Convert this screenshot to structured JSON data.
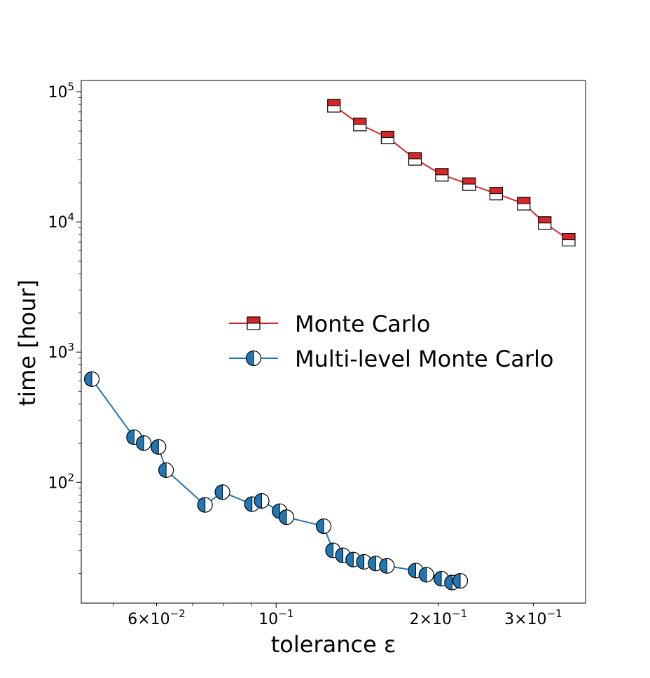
{
  "colors": {
    "mc": "#d62728",
    "mlmc": "#1f77b4",
    "frame": "#000000"
  },
  "chart_data": {
    "type": "line",
    "xlabel": "tolerance ε",
    "ylabel": "time [hour]",
    "xscale": "log",
    "yscale": "log",
    "xlim": [
      0.0435,
      0.375
    ],
    "ylim": [
      11.8,
      122000
    ],
    "grid": false,
    "legend_position": "center-right",
    "x_ticks": [
      {
        "value": 0.06,
        "base": "6",
        "sup": "−2"
      },
      {
        "value": 0.1,
        "base": "10",
        "sup": "−1"
      },
      {
        "value": 0.2,
        "base": "2",
        "sup": "−1"
      },
      {
        "value": 0.3,
        "base": "3",
        "sup": "−1"
      }
    ],
    "y_ticks": [
      {
        "value": 100,
        "sup": "2"
      },
      {
        "value": 1000,
        "sup": "3"
      },
      {
        "value": 10000,
        "sup": "4"
      },
      {
        "value": 100000,
        "sup": "5"
      }
    ],
    "series": [
      {
        "name": "Monte Carlo",
        "color": "#d62728",
        "marker": "square-half-top",
        "x": [
          0.128,
          0.143,
          0.161,
          0.181,
          0.203,
          0.228,
          0.256,
          0.288,
          0.315,
          0.349
        ],
        "y": [
          78000,
          56000,
          44500,
          30500,
          23000,
          19500,
          16500,
          13800,
          9800,
          7300
        ]
      },
      {
        "name": "Multi-level Monte Carlo",
        "color": "#1f77b4",
        "marker": "circle-half-left",
        "x": [
          0.0455,
          0.0545,
          0.0568,
          0.0605,
          0.0625,
          0.0738,
          0.0795,
          0.0902,
          0.094,
          0.1015,
          0.1045,
          0.1225,
          0.1275,
          0.133,
          0.139,
          0.1455,
          0.153,
          0.1605,
          0.1815,
          0.19,
          0.2025,
          0.212,
          0.2195
        ],
        "y": [
          620,
          222,
          200,
          187,
          124,
          67,
          84,
          68,
          72,
          60,
          54,
          46,
          30,
          27.5,
          25.5,
          24.5,
          23.8,
          22.8,
          21,
          19.5,
          18.2,
          17,
          17.5
        ]
      }
    ]
  }
}
